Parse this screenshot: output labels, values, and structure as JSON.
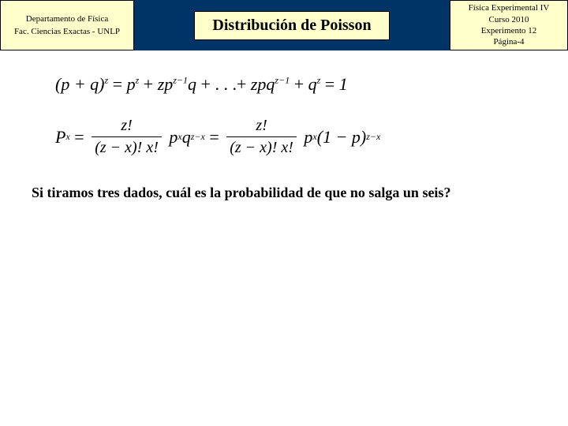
{
  "header": {
    "left": {
      "line1": "Departamento de Física",
      "line2": "Fac. Ciencias Exactas - UNLP"
    },
    "title": "Distribución de Poisson",
    "right": {
      "line1": "Física Experimental IV",
      "line2": "Curso 2010",
      "line3": "Experimento 12",
      "line4": "Página-4"
    }
  },
  "styling": {
    "header_bg": "#003366",
    "box_bg": "#ffffcc",
    "box_border": "#000000",
    "page_bg": "#ffffff",
    "title_fontsize": 20,
    "meta_fontsize": 11,
    "eq_fontsize": 22,
    "question_fontsize": 18
  },
  "equations": {
    "eq1": {
      "lhs": "(p + q)",
      "lhs_exp": "z",
      "terms": [
        "p^z",
        "zp^{z-1}q",
        "...",
        "zpq^{z-1}",
        "q^z"
      ],
      "rhs": "1"
    },
    "eq2": {
      "lhs_var": "P",
      "lhs_sub": "x",
      "frac1_num": "z!",
      "frac1_den": "(z − x)! x!",
      "mid1_base1": "p",
      "mid1_exp1": "x",
      "mid1_base2": "q",
      "mid1_exp2": "z−x",
      "frac2_num": "z!",
      "frac2_den": "(z − x)! x!",
      "mid2_base1": "p",
      "mid2_exp1": "x",
      "mid2_paren": "(1 − p)",
      "mid2_exp2": "z−x"
    }
  },
  "question": "Si tiramos tres dados, cuál es la probabilidad de que no salga un seis?"
}
